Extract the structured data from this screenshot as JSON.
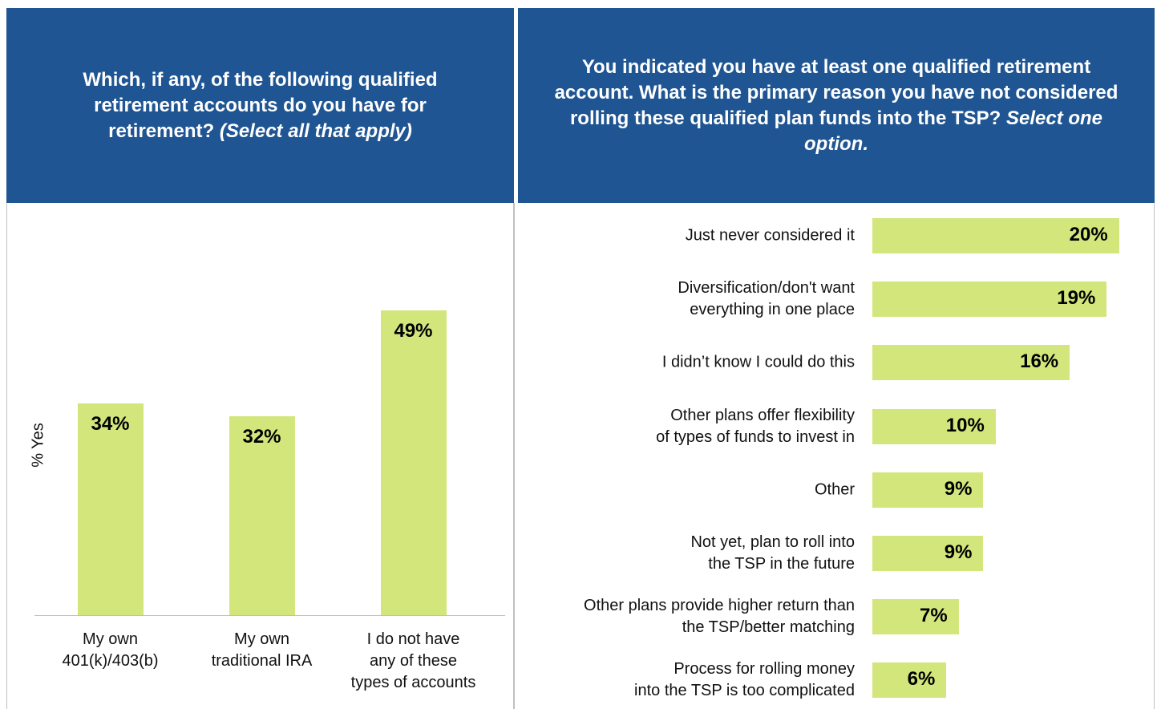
{
  "chart_data": [
    {
      "type": "bar",
      "title": "Which, if any, of the following qualified retirement accounts do you have for retirement?",
      "instruction": "(Select all that apply)",
      "y_label": "% Yes",
      "categories": [
        "My own\n401(k)/403(b)",
        "My own\ntraditional IRA",
        "I do not have\nany of these\ntypes of accounts"
      ],
      "values": [
        34,
        32,
        49
      ],
      "value_labels": [
        "34%",
        "32%",
        "49%"
      ],
      "color": "#d2e67c",
      "ylim": [
        0,
        66
      ]
    },
    {
      "type": "hbar",
      "title": "You indicated you have at least one qualified retirement account. What is the primary reason you have not considered rolling these qualified plan funds into the TSP?",
      "instruction": "Select one option.",
      "categories": [
        "Just never considered it",
        "Diversification/don't want\neverything in one place",
        "I didn’t know I could do this",
        "Other plans offer flexibility\nof types of funds to invest in",
        "Other",
        "Not yet, plan to roll into\nthe TSP in the future",
        "Other plans provide higher return than\nthe TSP/better matching",
        "Process for rolling money\ninto the TSP is too complicated"
      ],
      "values": [
        20,
        19,
        16,
        10,
        9,
        9,
        7,
        6
      ],
      "value_labels": [
        "20%",
        "19%",
        "16%",
        "10%",
        "9%",
        "9%",
        "7%",
        "6%"
      ],
      "color": "#d2e67c",
      "xlim": [
        0,
        23.4
      ]
    }
  ]
}
